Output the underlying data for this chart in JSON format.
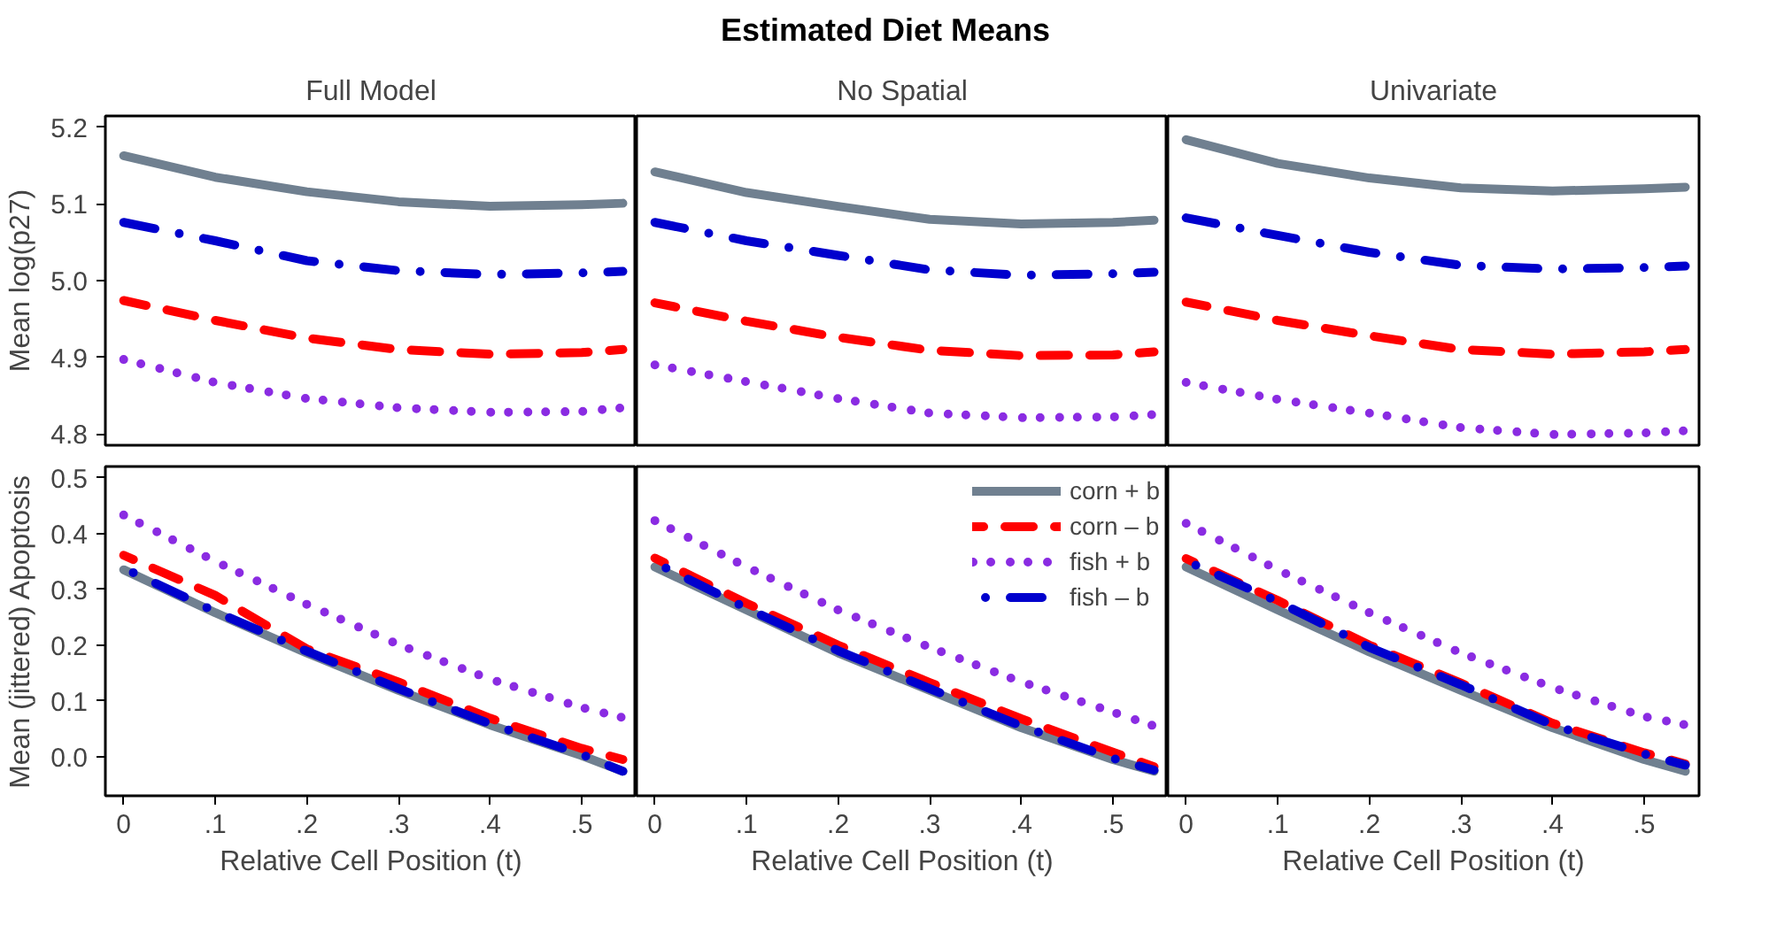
{
  "chart_data": [
    {
      "type": "line",
      "subtitle": "Full Model",
      "ylabel": "Mean log(p27)",
      "tick_labels": "y",
      "grid": false,
      "legend": false,
      "x": [
        0,
        0.1,
        0.2,
        0.3,
        0.4,
        0.5,
        0.545
      ],
      "xlim": [
        -0.02,
        0.56
      ],
      "ylim": [
        4.785,
        5.215
      ],
      "yticks": [
        4.8,
        4.9,
        {
          "value": 5,
          "label": "5.0"
        },
        5.1,
        5.2
      ],
      "series": [
        {
          "color": "#708090",
          "line_style": "solid",
          "values": [
            5.163,
            5.135,
            5.116,
            5.103,
            5.097,
            5.099,
            5.101
          ]
        },
        {
          "color": "#ff0000",
          "line_style": "dashed",
          "values": [
            4.974,
            4.948,
            4.925,
            4.91,
            4.904,
            4.906,
            4.91
          ]
        },
        {
          "color": "#8a2be2",
          "line_style": "dotted",
          "values": [
            4.897,
            4.867,
            4.846,
            4.834,
            4.828,
            4.829,
            4.834
          ]
        },
        {
          "color": "#0000cd",
          "line_style": "dashdot",
          "values": [
            5.076,
            5.052,
            5.026,
            5.013,
            5.008,
            5.01,
            5.012
          ]
        }
      ]
    },
    {
      "type": "line",
      "title": "Estimated Diet Means",
      "subtitle": "No Spatial",
      "tick_labels": false,
      "grid": false,
      "legend": false,
      "x": [
        0,
        0.1,
        0.2,
        0.3,
        0.4,
        0.5,
        0.545
      ],
      "xlim": [
        -0.02,
        0.56
      ],
      "ylim": [
        4.785,
        5.215
      ],
      "series": [
        {
          "color": "#708090",
          "line_style": "solid",
          "values": [
            5.142,
            5.115,
            5.097,
            5.08,
            5.074,
            5.076,
            5.079
          ]
        },
        {
          "color": "#ff0000",
          "line_style": "dashed",
          "values": [
            4.971,
            4.947,
            4.926,
            4.909,
            4.902,
            4.903,
            4.907
          ]
        },
        {
          "color": "#8a2be2",
          "line_style": "dotted",
          "values": [
            4.89,
            4.868,
            4.846,
            4.827,
            4.821,
            4.822,
            4.825
          ]
        },
        {
          "color": "#0000cd",
          "line_style": "dashdot",
          "values": [
            5.076,
            5.052,
            5.033,
            5.014,
            5.007,
            5.009,
            5.011
          ]
        }
      ]
    },
    {
      "type": "line",
      "subtitle": "Univariate",
      "tick_labels": false,
      "grid": false,
      "legend": false,
      "x": [
        0,
        0.1,
        0.2,
        0.3,
        0.4,
        0.5,
        0.545
      ],
      "xlim": [
        -0.02,
        0.56
      ],
      "ylim": [
        4.785,
        5.215
      ],
      "series": [
        {
          "color": "#708090",
          "line_style": "solid",
          "values": [
            5.184,
            5.153,
            5.134,
            5.121,
            5.117,
            5.12,
            5.122
          ]
        },
        {
          "color": "#ff0000",
          "line_style": "dashed",
          "values": [
            4.972,
            4.948,
            4.928,
            4.91,
            4.904,
            4.907,
            4.91
          ]
        },
        {
          "color": "#8a2be2",
          "line_style": "dotted",
          "values": [
            4.867,
            4.845,
            4.827,
            4.808,
            4.799,
            4.801,
            4.804
          ]
        },
        {
          "color": "#0000cd",
          "line_style": "dashdot",
          "values": [
            5.082,
            5.059,
            5.037,
            5.02,
            5.015,
            5.017,
            5.019
          ]
        }
      ]
    },
    {
      "type": "line",
      "xlabel": "Relative Cell Position (t)",
      "ylabel": "Mean (jittered) Apoptosis",
      "grid": false,
      "legend": false,
      "x": [
        0,
        0.1,
        0.2,
        0.3,
        0.4,
        0.5,
        0.545
      ],
      "xlim": [
        -0.02,
        0.56
      ],
      "xticks": [
        0,
        {
          "value": 0.1,
          "label": ".1"
        },
        {
          "value": 0.2,
          "label": ".2"
        },
        {
          "value": 0.3,
          "label": ".3"
        },
        {
          "value": 0.4,
          "label": ".4"
        },
        {
          "value": 0.5,
          "label": ".5"
        }
      ],
      "ylim": [
        -0.07,
        0.52
      ],
      "yticks": [
        {
          "value": 0,
          "label": "0.0"
        },
        0.1,
        0.2,
        0.3,
        0.4,
        0.5
      ],
      "series": [
        {
          "color": "#708090",
          "line_style": "solid",
          "values": [
            0.335,
            0.258,
            0.186,
            0.119,
            0.057,
            0.002,
            -0.026
          ]
        },
        {
          "color": "#ff0000",
          "line_style": "dashed",
          "values": [
            0.361,
            0.289,
            0.193,
            0.134,
            0.069,
            0.015,
            -0.005
          ]
        },
        {
          "color": "#8a2be2",
          "line_style": "dotted",
          "values": [
            0.433,
            0.35,
            0.273,
            0.201,
            0.139,
            0.088,
            0.07
          ]
        },
        {
          "color": "#0000cd",
          "line_style": "dashdot",
          "values": [
            0.338,
            0.26,
            0.189,
            0.122,
            0.059,
            0.004,
            -0.026
          ]
        }
      ]
    },
    {
      "type": "line",
      "xlabel": "Relative Cell Position (t)",
      "tick_labels": "x",
      "grid": false,
      "legend": "top right",
      "x": [
        0,
        0.1,
        0.2,
        0.3,
        0.4,
        0.5,
        0.545
      ],
      "xlim": [
        -0.02,
        0.56
      ],
      "xticks": [
        0,
        {
          "value": 0.1,
          "label": ".1"
        },
        {
          "value": 0.2,
          "label": ".2"
        },
        {
          "value": 0.3,
          "label": ".3"
        },
        {
          "value": 0.4,
          "label": ".4"
        },
        {
          "value": 0.5,
          "label": ".5"
        }
      ],
      "ylim": [
        -0.07,
        0.52
      ],
      "series": [
        {
          "name": "corn + b",
          "color": "#708090",
          "line_style": "solid",
          "values": [
            0.34,
            0.263,
            0.186,
            0.119,
            0.052,
            -0.005,
            -0.026
          ]
        },
        {
          "name": "corn – b",
          "color": "#ff0000",
          "line_style": "dashed",
          "values": [
            0.356,
            0.275,
            0.2,
            0.133,
            0.068,
            0.008,
            -0.018
          ]
        },
        {
          "name": "fish + b",
          "color": "#8a2be2",
          "line_style": "dotted",
          "values": [
            0.423,
            0.34,
            0.263,
            0.196,
            0.134,
            0.08,
            0.055
          ]
        },
        {
          "name": "fish – b",
          "color": "#0000cd",
          "line_style": "dashdot",
          "values": [
            0.348,
            0.266,
            0.19,
            0.122,
            0.055,
            -0.003,
            -0.024
          ]
        }
      ]
    },
    {
      "type": "line",
      "xlabel": "Relative Cell Position (t)",
      "tick_labels": "x",
      "grid": false,
      "legend": false,
      "x": [
        0,
        0.1,
        0.2,
        0.3,
        0.4,
        0.5,
        0.545
      ],
      "xlim": [
        -0.02,
        0.56
      ],
      "xticks": [
        0,
        {
          "value": 0.1,
          "label": ".1"
        },
        {
          "value": 0.2,
          "label": ".2"
        },
        {
          "value": 0.3,
          "label": ".3"
        },
        {
          "value": 0.4,
          "label": ".4"
        },
        {
          "value": 0.5,
          "label": ".5"
        }
      ],
      "ylim": [
        -0.07,
        0.52
      ],
      "series": [
        {
          "color": "#708090",
          "line_style": "solid",
          "values": [
            0.34,
            0.263,
            0.188,
            0.119,
            0.052,
            -0.005,
            -0.026
          ]
        },
        {
          "color": "#ff0000",
          "line_style": "dashed",
          "values": [
            0.355,
            0.28,
            0.2,
            0.132,
            0.06,
            0.007,
            -0.013
          ]
        },
        {
          "color": "#8a2be2",
          "line_style": "dotted",
          "values": [
            0.418,
            0.335,
            0.258,
            0.186,
            0.124,
            0.072,
            0.057
          ]
        },
        {
          "color": "#0000cd",
          "line_style": "dashdot",
          "values": [
            0.351,
            0.278,
            0.196,
            0.129,
            0.057,
            0.005,
            -0.015
          ]
        }
      ]
    }
  ]
}
